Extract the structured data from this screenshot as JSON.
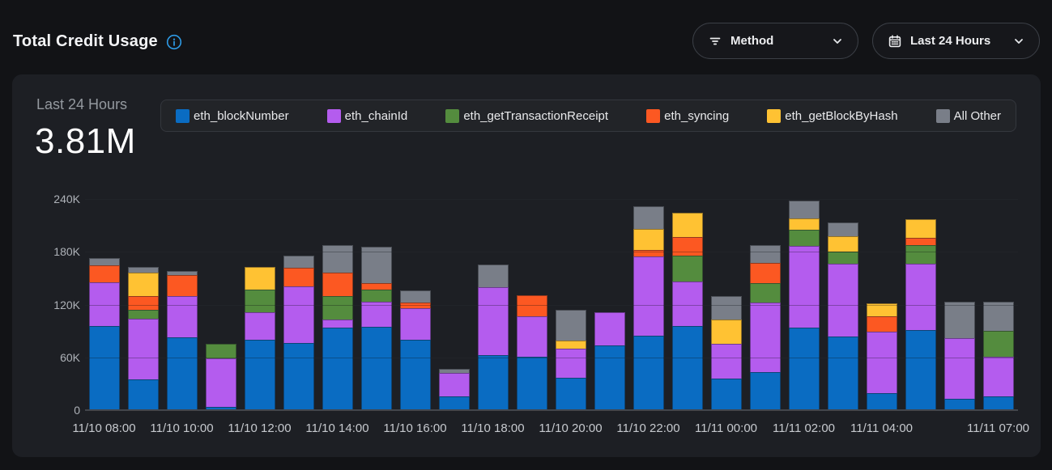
{
  "header": {
    "title": "Total Credit Usage",
    "method_filter": {
      "label": "Method"
    },
    "range_filter": {
      "label": "Last 24 Hours"
    }
  },
  "summary": {
    "period_label": "Last 24 Hours",
    "total": "3.81M"
  },
  "icons": {
    "info": "info-icon",
    "filter": "filter-icon",
    "calendar": "calendar-icon",
    "chevron": "chevron-down-icon"
  },
  "colors": {
    "page_bg": "#121316",
    "card_bg": "#1D1F24",
    "accent_info": "#2E9BE6",
    "series_blue": "#0A6CC2",
    "series_purple": "#B45CEE",
    "series_green": "#548C3E",
    "series_orange": "#FC5822",
    "series_yellow": "#FFC233",
    "series_gray": "#797E88"
  },
  "chart_data": {
    "type": "bar",
    "stacked": true,
    "title": "Last 24 Hours",
    "total_label": "3.81M",
    "unit": "credits",
    "ylim": [
      0,
      240000
    ],
    "y_ticks": [
      "240K",
      "180K",
      "120K",
      "60K",
      "0"
    ],
    "grid": true,
    "legend_position": "top",
    "series": [
      {
        "name": "eth_blockNumber",
        "color": "#0A6CC2",
        "values": [
          96000,
          35000,
          83000,
          4000,
          80000,
          76000,
          94000,
          95000,
          80000,
          16000,
          63000,
          61000,
          37000,
          74000,
          85000,
          96000,
          36000,
          43000,
          94000,
          84000,
          19000,
          91000,
          13000,
          16000
        ]
      },
      {
        "name": "eth_chainId",
        "color": "#B45CEE",
        "values": [
          49000,
          69000,
          47000,
          55000,
          31000,
          65000,
          9000,
          28000,
          36000,
          26000,
          77000,
          46000,
          33000,
          37000,
          90000,
          50000,
          39000,
          79000,
          93000,
          82000,
          70000,
          75000,
          69000,
          45000
        ]
      },
      {
        "name": "eth_getTransactionReceipt",
        "color": "#548C3E",
        "values": [
          0,
          10000,
          0,
          16000,
          26000,
          0,
          27000,
          14000,
          0,
          0,
          0,
          0,
          0,
          0,
          0,
          30000,
          0,
          22000,
          18000,
          14000,
          0,
          22000,
          0,
          29000
        ]
      },
      {
        "name": "eth_syncing",
        "color": "#FC5822",
        "values": [
          20000,
          16000,
          24000,
          0,
          0,
          21000,
          26000,
          7000,
          6000,
          0,
          0,
          24000,
          0,
          0,
          7000,
          21000,
          0,
          23000,
          0,
          0,
          18000,
          8000,
          0,
          0
        ]
      },
      {
        "name": "eth_getBlockByHash",
        "color": "#FFC233",
        "values": [
          0,
          26000,
          0,
          0,
          26000,
          0,
          0,
          0,
          0,
          0,
          0,
          0,
          9000,
          0,
          24000,
          27000,
          28000,
          0,
          13000,
          18000,
          14000,
          21000,
          0,
          0
        ]
      },
      {
        "name": "All Other",
        "color": "#797E88",
        "values": [
          8000,
          7000,
          4000,
          0,
          0,
          14000,
          32000,
          42000,
          14000,
          5000,
          26000,
          0,
          35000,
          0,
          26000,
          0,
          27000,
          21000,
          20000,
          15000,
          0,
          0,
          41000,
          33000
        ]
      }
    ],
    "x_tick_positions": [
      0,
      2,
      4,
      6,
      8,
      10,
      12,
      14,
      16,
      18,
      20,
      23
    ],
    "x_tick_labels": [
      "11/10 08:00",
      "11/10 10:00",
      "11/10 12:00",
      "11/10 14:00",
      "11/10 16:00",
      "11/10 18:00",
      "11/10 20:00",
      "11/10 22:00",
      "11/11 00:00",
      "11/11 02:00",
      "11/11 04:00",
      "11/11 07:00"
    ]
  }
}
